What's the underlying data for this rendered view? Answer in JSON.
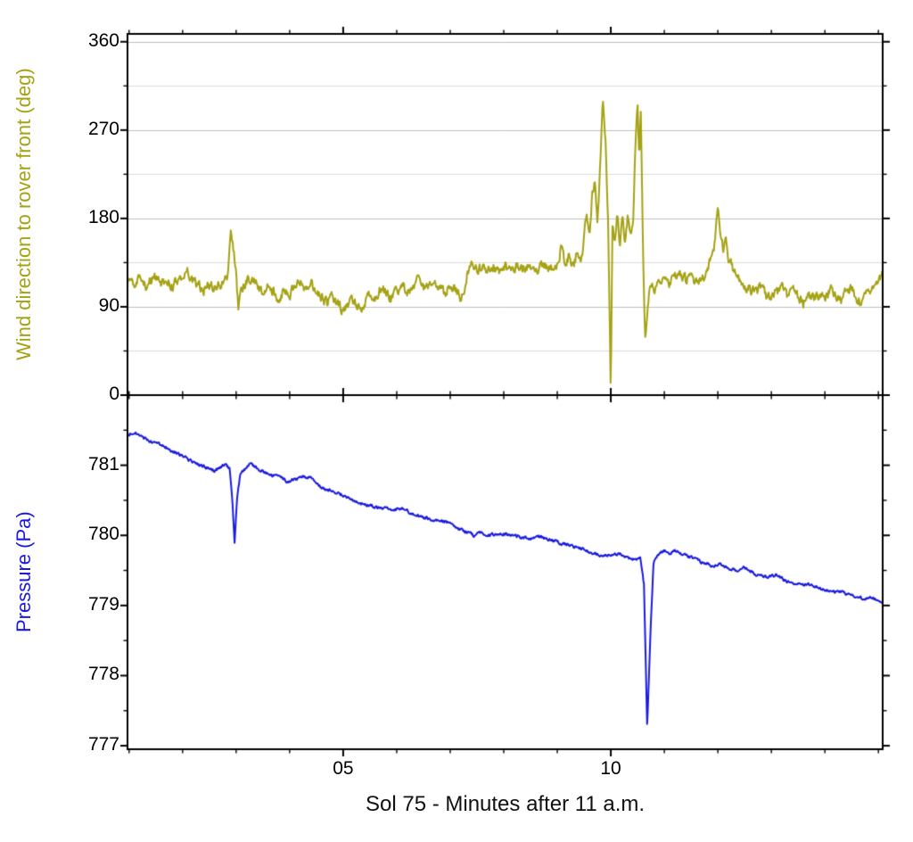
{
  "figure": {
    "background": "#ffffff",
    "frame_color": "#000000",
    "grid_color_major": "#c0c0c0",
    "grid_color_minor": "#dcdcdc"
  },
  "x_axis": {
    "label": "Sol 75 - Minutes after 11 a.m.",
    "xlim": [
      0.97,
      15.08
    ],
    "xticks": [
      5,
      10
    ],
    "xtick_labels": [
      "05",
      "10"
    ],
    "minor_step": 1
  },
  "chart_data": [
    {
      "type": "line",
      "name": "wind-direction",
      "ylabel": "Wind direction to rover front (deg)",
      "color": "#a5a214",
      "ylim": [
        0,
        368
      ],
      "yticks": [
        0,
        90,
        180,
        270,
        360
      ],
      "ytick_labels": [
        "0",
        "90",
        "180",
        "270",
        "360"
      ],
      "yminor": 45,
      "grid": true,
      "noise_amplitude": 4.5,
      "points": [
        [
          0.97,
          116
        ],
        [
          1.05,
          120
        ],
        [
          1.1,
          113
        ],
        [
          1.2,
          118
        ],
        [
          1.3,
          111
        ],
        [
          1.4,
          116
        ],
        [
          1.5,
          121
        ],
        [
          1.6,
          114
        ],
        [
          1.7,
          118
        ],
        [
          1.8,
          111
        ],
        [
          1.9,
          117
        ],
        [
          2.0,
          122
        ],
        [
          2.1,
          125
        ],
        [
          2.2,
          117
        ],
        [
          2.3,
          111
        ],
        [
          2.4,
          107
        ],
        [
          2.5,
          114
        ],
        [
          2.6,
          110
        ],
        [
          2.7,
          113
        ],
        [
          2.8,
          117
        ],
        [
          2.85,
          124
        ],
        [
          2.9,
          163
        ],
        [
          2.95,
          148
        ],
        [
          3.0,
          126
        ],
        [
          3.04,
          88
        ],
        [
          3.1,
          109
        ],
        [
          3.2,
          116
        ],
        [
          3.3,
          121
        ],
        [
          3.4,
          111
        ],
        [
          3.5,
          104
        ],
        [
          3.6,
          112
        ],
        [
          3.7,
          107
        ],
        [
          3.8,
          99
        ],
        [
          3.9,
          109
        ],
        [
          4.0,
          104
        ],
        [
          4.1,
          112
        ],
        [
          4.2,
          118
        ],
        [
          4.3,
          109
        ],
        [
          4.4,
          114
        ],
        [
          4.5,
          107
        ],
        [
          4.6,
          99
        ],
        [
          4.7,
          94
        ],
        [
          4.8,
          101
        ],
        [
          4.9,
          93
        ],
        [
          5.0,
          87
        ],
        [
          5.1,
          92
        ],
        [
          5.2,
          97
        ],
        [
          5.3,
          89
        ],
        [
          5.4,
          94
        ],
        [
          5.5,
          104
        ],
        [
          5.6,
          99
        ],
        [
          5.7,
          109
        ],
        [
          5.8,
          104
        ],
        [
          5.9,
          97
        ],
        [
          6.0,
          107
        ],
        [
          6.1,
          112
        ],
        [
          6.2,
          104
        ],
        [
          6.3,
          109
        ],
        [
          6.4,
          117
        ],
        [
          6.5,
          111
        ],
        [
          6.6,
          107
        ],
        [
          6.7,
          114
        ],
        [
          6.8,
          109
        ],
        [
          6.9,
          104
        ],
        [
          7.0,
          111
        ],
        [
          7.1,
          107
        ],
        [
          7.2,
          98
        ],
        [
          7.28,
          112
        ],
        [
          7.33,
          127
        ],
        [
          7.4,
          131
        ],
        [
          7.5,
          126
        ],
        [
          7.6,
          132
        ],
        [
          7.7,
          128
        ],
        [
          7.8,
          131
        ],
        [
          7.9,
          127
        ],
        [
          8.0,
          132
        ],
        [
          8.1,
          129
        ],
        [
          8.2,
          131
        ],
        [
          8.3,
          134
        ],
        [
          8.4,
          129
        ],
        [
          8.5,
          132
        ],
        [
          8.6,
          128
        ],
        [
          8.7,
          132
        ],
        [
          8.8,
          130
        ],
        [
          8.9,
          128
        ],
        [
          9.0,
          134
        ],
        [
          9.08,
          152
        ],
        [
          9.15,
          131
        ],
        [
          9.22,
          143
        ],
        [
          9.3,
          129
        ],
        [
          9.38,
          148
        ],
        [
          9.45,
          138
        ],
        [
          9.5,
          158
        ],
        [
          9.55,
          186
        ],
        [
          9.6,
          163
        ],
        [
          9.65,
          202
        ],
        [
          9.7,
          218
        ],
        [
          9.75,
          178
        ],
        [
          9.8,
          232
        ],
        [
          9.85,
          296
        ],
        [
          9.9,
          262
        ],
        [
          9.95,
          176
        ],
        [
          10.0,
          2
        ],
        [
          10.03,
          178
        ],
        [
          10.07,
          158
        ],
        [
          10.12,
          186
        ],
        [
          10.17,
          152
        ],
        [
          10.22,
          182
        ],
        [
          10.27,
          156
        ],
        [
          10.32,
          186
        ],
        [
          10.37,
          160
        ],
        [
          10.42,
          182
        ],
        [
          10.46,
          252
        ],
        [
          10.5,
          296
        ],
        [
          10.53,
          238
        ],
        [
          10.56,
          294
        ],
        [
          10.6,
          148
        ],
        [
          10.64,
          56
        ],
        [
          10.7,
          98
        ],
        [
          10.75,
          111
        ],
        [
          10.8,
          107
        ],
        [
          10.9,
          114
        ],
        [
          11.0,
          117
        ],
        [
          11.1,
          112
        ],
        [
          11.2,
          119
        ],
        [
          11.3,
          124
        ],
        [
          11.4,
          117
        ],
        [
          11.5,
          121
        ],
        [
          11.6,
          114
        ],
        [
          11.7,
          119
        ],
        [
          11.8,
          127
        ],
        [
          11.9,
          144
        ],
        [
          11.95,
          158
        ],
        [
          12.0,
          189
        ],
        [
          12.05,
          159
        ],
        [
          12.1,
          149
        ],
        [
          12.15,
          164
        ],
        [
          12.2,
          139
        ],
        [
          12.3,
          127
        ],
        [
          12.4,
          119
        ],
        [
          12.5,
          114
        ],
        [
          12.6,
          109
        ],
        [
          12.7,
          104
        ],
        [
          12.8,
          111
        ],
        [
          12.9,
          100
        ],
        [
          13.0,
          97
        ],
        [
          13.1,
          104
        ],
        [
          13.2,
          109
        ],
        [
          13.3,
          101
        ],
        [
          13.4,
          107
        ],
        [
          13.5,
          99
        ],
        [
          13.6,
          94
        ],
        [
          13.7,
          101
        ],
        [
          13.8,
          97
        ],
        [
          13.9,
          104
        ],
        [
          14.0,
          99
        ],
        [
          14.1,
          107
        ],
        [
          14.2,
          101
        ],
        [
          14.3,
          97
        ],
        [
          14.4,
          104
        ],
        [
          14.5,
          109
        ],
        [
          14.6,
          99
        ],
        [
          14.7,
          94
        ],
        [
          14.8,
          104
        ],
        [
          14.9,
          114
        ],
        [
          15.0,
          120
        ],
        [
          15.1,
          121
        ]
      ]
    },
    {
      "type": "line",
      "name": "pressure",
      "ylabel": "Pressure (Pa)",
      "color": "#1a1adf",
      "ylim": [
        776.95,
        782.0
      ],
      "yticks": [
        777,
        778,
        779,
        780,
        781
      ],
      "ytick_labels": [
        "777",
        "778",
        "779",
        "780",
        "781"
      ],
      "yminor": 0.5,
      "grid": false,
      "noise_amplitude": 0.018,
      "points": [
        [
          0.97,
          781.43
        ],
        [
          1.1,
          781.47
        ],
        [
          1.2,
          781.42
        ],
        [
          1.3,
          781.38
        ],
        [
          1.4,
          781.35
        ],
        [
          1.5,
          781.32
        ],
        [
          1.6,
          781.3
        ],
        [
          1.7,
          781.25
        ],
        [
          1.8,
          781.2
        ],
        [
          1.9,
          781.17
        ],
        [
          2.0,
          781.14
        ],
        [
          2.1,
          781.08
        ],
        [
          2.2,
          781.04
        ],
        [
          2.3,
          781.0
        ],
        [
          2.4,
          780.98
        ],
        [
          2.5,
          780.95
        ],
        [
          2.6,
          780.92
        ],
        [
          2.7,
          780.97
        ],
        [
          2.8,
          781.0
        ],
        [
          2.88,
          780.95
        ],
        [
          2.93,
          780.5
        ],
        [
          2.97,
          779.9
        ],
        [
          3.02,
          780.55
        ],
        [
          3.08,
          780.88
        ],
        [
          3.15,
          780.93
        ],
        [
          3.25,
          781.02
        ],
        [
          3.35,
          780.98
        ],
        [
          3.45,
          780.93
        ],
        [
          3.55,
          780.9
        ],
        [
          3.65,
          780.86
        ],
        [
          3.75,
          780.85
        ],
        [
          3.85,
          780.82
        ],
        [
          3.95,
          780.77
        ],
        [
          4.1,
          780.8
        ],
        [
          4.25,
          780.84
        ],
        [
          4.4,
          780.82
        ],
        [
          4.5,
          780.76
        ],
        [
          4.6,
          780.68
        ],
        [
          4.75,
          780.64
        ],
        [
          4.9,
          780.6
        ],
        [
          5.05,
          780.56
        ],
        [
          5.2,
          780.5
        ],
        [
          5.35,
          780.45
        ],
        [
          5.5,
          780.42
        ],
        [
          5.65,
          780.4
        ],
        [
          5.8,
          780.38
        ],
        [
          5.95,
          780.35
        ],
        [
          6.1,
          780.39
        ],
        [
          6.25,
          780.33
        ],
        [
          6.4,
          780.28
        ],
        [
          6.55,
          780.25
        ],
        [
          6.7,
          780.22
        ],
        [
          6.85,
          780.2
        ],
        [
          7.0,
          780.18
        ],
        [
          7.15,
          780.1
        ],
        [
          7.3,
          780.05
        ],
        [
          7.45,
          780.0
        ],
        [
          7.6,
          780.04
        ],
        [
          7.75,
          780.0
        ],
        [
          7.9,
          780.03
        ],
        [
          8.05,
          780.02
        ],
        [
          8.2,
          779.99
        ],
        [
          8.35,
          779.97
        ],
        [
          8.5,
          779.95
        ],
        [
          8.65,
          779.99
        ],
        [
          8.8,
          779.95
        ],
        [
          8.95,
          779.92
        ],
        [
          9.1,
          779.88
        ],
        [
          9.25,
          779.85
        ],
        [
          9.4,
          779.82
        ],
        [
          9.55,
          779.78
        ],
        [
          9.7,
          779.74
        ],
        [
          9.85,
          779.7
        ],
        [
          10.0,
          779.73
        ],
        [
          10.15,
          779.74
        ],
        [
          10.3,
          779.68
        ],
        [
          10.45,
          779.65
        ],
        [
          10.55,
          779.7
        ],
        [
          10.62,
          779.3
        ],
        [
          10.68,
          777.25
        ],
        [
          10.74,
          778.6
        ],
        [
          10.8,
          779.62
        ],
        [
          10.9,
          779.74
        ],
        [
          11.0,
          779.78
        ],
        [
          11.1,
          779.74
        ],
        [
          11.2,
          779.78
        ],
        [
          11.3,
          779.74
        ],
        [
          11.45,
          779.7
        ],
        [
          11.6,
          779.65
        ],
        [
          11.75,
          779.6
        ],
        [
          11.9,
          779.56
        ],
        [
          12.05,
          779.6
        ],
        [
          12.2,
          779.52
        ],
        [
          12.35,
          779.5
        ],
        [
          12.5,
          779.54
        ],
        [
          12.65,
          779.47
        ],
        [
          12.8,
          779.42
        ],
        [
          12.95,
          779.4
        ],
        [
          13.1,
          779.44
        ],
        [
          13.25,
          779.36
        ],
        [
          13.4,
          779.32
        ],
        [
          13.55,
          779.3
        ],
        [
          13.7,
          779.3
        ],
        [
          13.85,
          779.26
        ],
        [
          14.0,
          779.22
        ],
        [
          14.15,
          779.2
        ],
        [
          14.3,
          779.2
        ],
        [
          14.45,
          779.16
        ],
        [
          14.6,
          779.12
        ],
        [
          14.75,
          779.1
        ],
        [
          14.9,
          779.1
        ],
        [
          15.1,
          779.05
        ]
      ]
    }
  ]
}
